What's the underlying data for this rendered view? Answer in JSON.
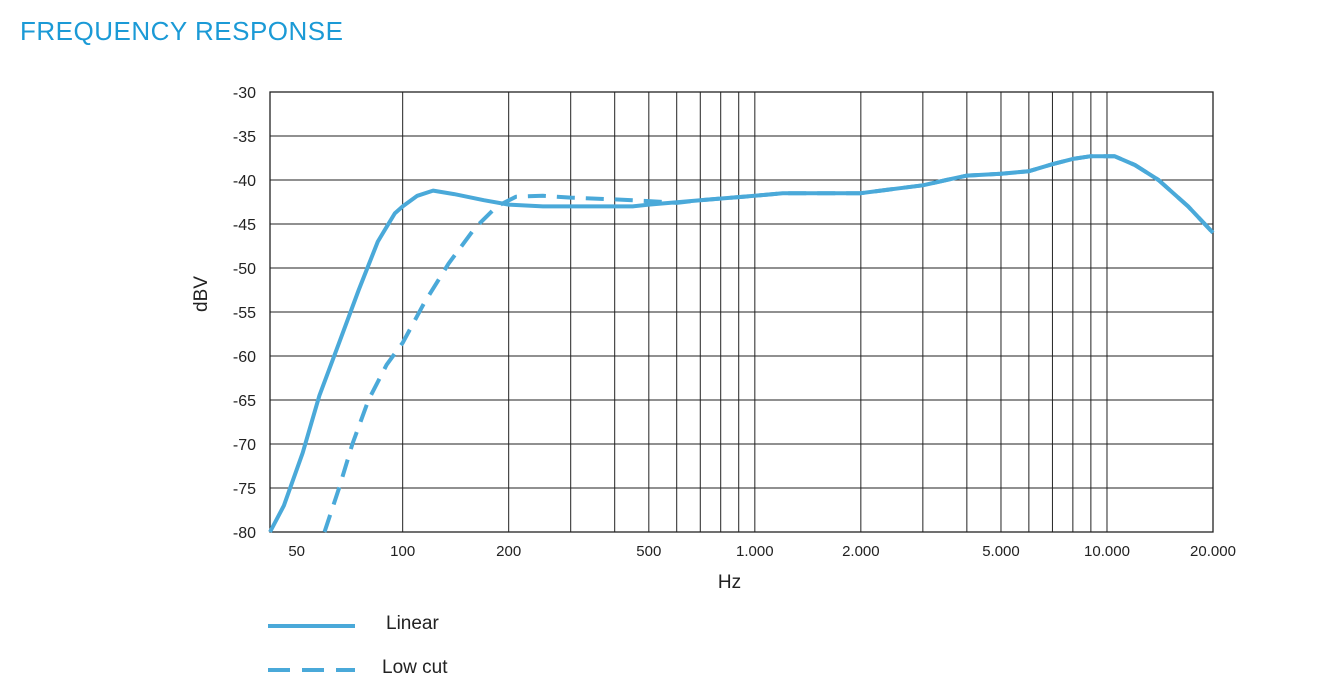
{
  "page": {
    "title": "FREQUENCY RESPONSE"
  },
  "chart_data": {
    "type": "line",
    "title": "FREQUENCY RESPONSE",
    "xlabel": "Hz",
    "ylabel": "dBV",
    "x_scale": "log",
    "xlim": [
      42,
      20000
    ],
    "ylim": [
      -80,
      -30
    ],
    "grid": true,
    "x_ticks": [
      {
        "value": 50,
        "label": "50"
      },
      {
        "value": 100,
        "label": "100"
      },
      {
        "value": 200,
        "label": "200"
      },
      {
        "value": 500,
        "label": "500"
      },
      {
        "value": 1000,
        "label": "1.000"
      },
      {
        "value": 2000,
        "label": "2.000"
      },
      {
        "value": 5000,
        "label": "5.000"
      },
      {
        "value": 10000,
        "label": "10.000"
      },
      {
        "value": 20000,
        "label": "20.000"
      }
    ],
    "y_ticks": [
      {
        "value": -30,
        "label": "-30"
      },
      {
        "value": -35,
        "label": "-35"
      },
      {
        "value": -40,
        "label": "-40"
      },
      {
        "value": -45,
        "label": "-45"
      },
      {
        "value": -50,
        "label": "-50"
      },
      {
        "value": -55,
        "label": "-55"
      },
      {
        "value": -60,
        "label": "-60"
      },
      {
        "value": -65,
        "label": "-65"
      },
      {
        "value": -70,
        "label": "-70"
      },
      {
        "value": -75,
        "label": "-75"
      },
      {
        "value": -80,
        "label": "-80"
      }
    ],
    "x_gridlines": [
      100,
      200,
      300,
      400,
      500,
      600,
      700,
      800,
      900,
      1000,
      2000,
      3000,
      4000,
      5000,
      6000,
      7000,
      8000,
      9000,
      10000
    ],
    "color": "#4aa9d9",
    "legend_position": "bottom-left",
    "series": [
      {
        "name": "Linear",
        "style": "solid",
        "points": [
          [
            42,
            -80
          ],
          [
            46,
            -77
          ],
          [
            52,
            -71
          ],
          [
            58,
            -64.5
          ],
          [
            66,
            -58.5
          ],
          [
            75,
            -52.5
          ],
          [
            85,
            -47
          ],
          [
            95,
            -43.8
          ],
          [
            100,
            -43
          ],
          [
            110,
            -41.8
          ],
          [
            122,
            -41.2
          ],
          [
            140,
            -41.6
          ],
          [
            170,
            -42.3
          ],
          [
            200,
            -42.8
          ],
          [
            250,
            -43
          ],
          [
            300,
            -43
          ],
          [
            450,
            -43
          ],
          [
            500,
            -42.8
          ],
          [
            700,
            -42.3
          ],
          [
            1000,
            -41.8
          ],
          [
            1200,
            -41.5
          ],
          [
            1600,
            -41.5
          ],
          [
            2000,
            -41.5
          ],
          [
            2500,
            -41
          ],
          [
            3000,
            -40.6
          ],
          [
            3500,
            -40
          ],
          [
            4000,
            -39.5
          ],
          [
            5000,
            -39.3
          ],
          [
            6000,
            -39
          ],
          [
            7000,
            -38.2
          ],
          [
            8000,
            -37.6
          ],
          [
            9000,
            -37.3
          ],
          [
            10500,
            -37.3
          ],
          [
            12000,
            -38.3
          ],
          [
            14000,
            -40
          ],
          [
            17000,
            -43
          ],
          [
            20000,
            -46
          ]
        ]
      },
      {
        "name": "Low cut",
        "style": "dashed",
        "points": [
          [
            60,
            -80
          ],
          [
            66,
            -75
          ],
          [
            72,
            -70
          ],
          [
            80,
            -65
          ],
          [
            90,
            -61
          ],
          [
            100,
            -58.5
          ],
          [
            115,
            -54
          ],
          [
            135,
            -49.5
          ],
          [
            160,
            -45.5
          ],
          [
            185,
            -43
          ],
          [
            210,
            -41.9
          ],
          [
            250,
            -41.8
          ],
          [
            300,
            -42
          ],
          [
            400,
            -42.2
          ],
          [
            500,
            -42.4
          ],
          [
            600,
            -42.6
          ],
          [
            700,
            -42.3
          ],
          [
            1000,
            -41.8
          ],
          [
            1200,
            -41.5
          ],
          [
            1600,
            -41.5
          ],
          [
            2000,
            -41.5
          ],
          [
            2500,
            -41
          ],
          [
            3000,
            -40.6
          ],
          [
            3500,
            -40
          ],
          [
            4000,
            -39.5
          ],
          [
            5000,
            -39.3
          ],
          [
            6000,
            -39
          ],
          [
            7000,
            -38.2
          ],
          [
            8000,
            -37.6
          ],
          [
            9000,
            -37.3
          ],
          [
            10500,
            -37.3
          ],
          [
            12000,
            -38.3
          ],
          [
            14000,
            -40
          ],
          [
            17000,
            -43
          ],
          [
            20000,
            -46
          ]
        ]
      }
    ]
  }
}
